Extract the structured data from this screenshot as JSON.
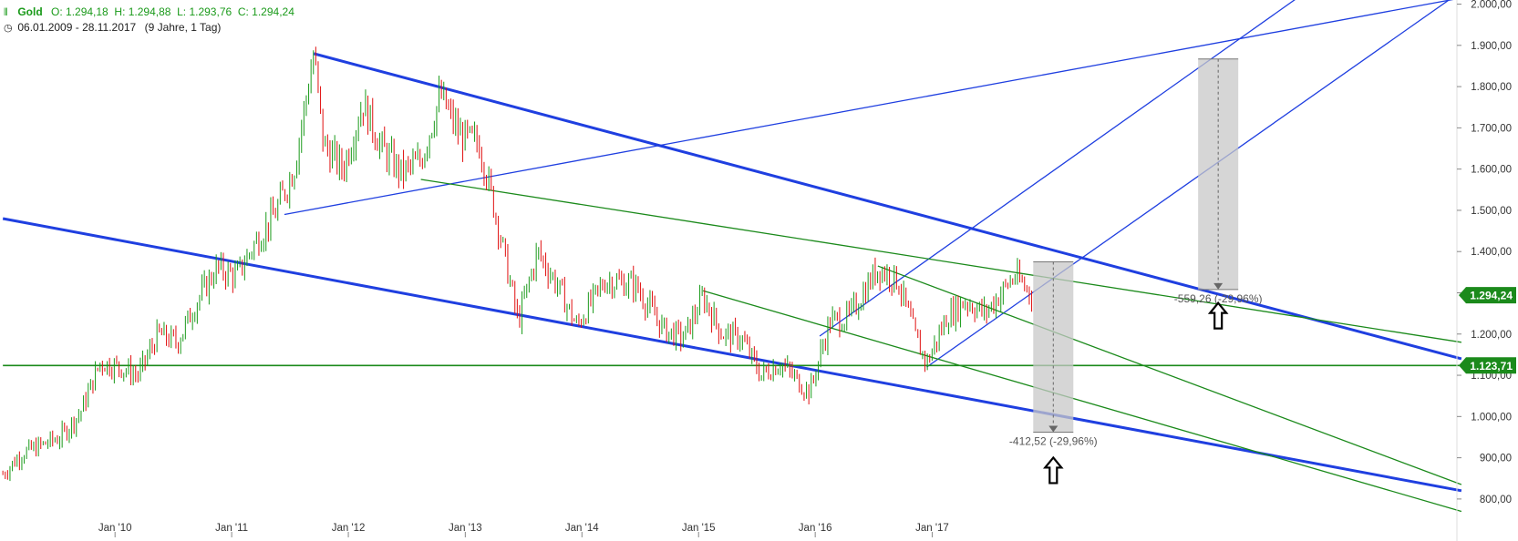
{
  "header": {
    "symbol": "Gold",
    "ohlc": "O: 1.294,18  H: 1.294,88  L: 1.293,76  C: 1.294,24",
    "range": "06.01.2009 - 28.11.2017",
    "period": "(9 Jahre, 1 Tag)",
    "icon_chart": "candlestick-icon",
    "icon_clock": "clock-icon"
  },
  "chart_data": {
    "type": "line",
    "style": "candlestick",
    "grid": false,
    "colors": {
      "up": "#1a9a1a",
      "down": "#e01010",
      "channel": "#1f3fe0",
      "green_lines": "#1b8a1b",
      "tag": "#1b8a1b"
    },
    "x_ticks": [
      "Jan '10",
      "Jan '11",
      "Jan '12",
      "Jan '13",
      "Jan '14",
      "Jan '15",
      "Jan '16",
      "Jan '17"
    ],
    "y_ticks": [
      "800,00",
      "900,00",
      "1.000,00",
      "1.100,00",
      "1.200,00",
      "1.300,00",
      "1.400,00",
      "1.500,00",
      "1.600,00",
      "1.700,00",
      "1.800,00",
      "1.900,00",
      "2.000,00"
    ],
    "ylim": [
      760,
      2010
    ],
    "xlim": [
      "2009-01-06",
      "2021-07-01"
    ],
    "price_series": {
      "name": "Gold",
      "x": [
        "2009-01",
        "2009-03",
        "2009-05",
        "2009-07",
        "2009-09",
        "2009-11",
        "2010-01",
        "2010-03",
        "2010-05",
        "2010-07",
        "2010-09",
        "2010-11",
        "2011-01",
        "2011-03",
        "2011-05",
        "2011-07",
        "2011-09",
        "2011-10",
        "2011-12",
        "2012-02",
        "2012-04",
        "2012-06",
        "2012-08",
        "2012-10",
        "2012-12",
        "2013-02",
        "2013-04",
        "2013-06",
        "2013-08",
        "2013-10",
        "2013-12",
        "2014-03",
        "2014-06",
        "2014-09",
        "2014-11",
        "2015-01",
        "2015-03",
        "2015-05",
        "2015-07",
        "2015-09",
        "2015-11",
        "2015-12",
        "2016-02",
        "2016-04",
        "2016-07",
        "2016-09",
        "2016-11",
        "2016-12",
        "2017-02",
        "2017-04",
        "2017-06",
        "2017-09",
        "2017-11"
      ],
      "y": [
        860,
        910,
        930,
        950,
        1010,
        1130,
        1120,
        1100,
        1200,
        1180,
        1280,
        1360,
        1340,
        1420,
        1490,
        1600,
        1880,
        1660,
        1600,
        1760,
        1650,
        1590,
        1620,
        1780,
        1680,
        1660,
        1460,
        1230,
        1400,
        1320,
        1220,
        1330,
        1320,
        1210,
        1190,
        1290,
        1200,
        1190,
        1100,
        1130,
        1080,
        1060,
        1230,
        1240,
        1360,
        1330,
        1180,
        1130,
        1240,
        1280,
        1250,
        1340,
        1294
      ]
    },
    "lines": [
      {
        "name": "blue-channel-upper",
        "color": "#1f3fe0",
        "points": [
          [
            "2011-09",
            1880
          ],
          [
            "2021-07",
            1140
          ]
        ]
      },
      {
        "name": "blue-channel-lower",
        "color": "#1f3fe0",
        "points": [
          [
            "2009-01",
            1480
          ],
          [
            "2021-07",
            820
          ]
        ]
      },
      {
        "name": "blue-fan-upper",
        "color": "#1f3fe0",
        "points": [
          [
            "2011-06",
            1490
          ],
          [
            "2021-07",
            2015
          ]
        ]
      },
      {
        "name": "blue-ray-1",
        "color": "#1f3fe0",
        "points": [
          [
            "2016-01",
            1195
          ],
          [
            "2020-06",
            2080
          ]
        ]
      },
      {
        "name": "blue-ray-2",
        "color": "#1f3fe0",
        "points": [
          [
            "2016-12",
            1120
          ],
          [
            "2021-06",
            2015
          ]
        ]
      },
      {
        "name": "green-trend-long",
        "color": "#1b8a1b",
        "points": [
          [
            "2012-08",
            1575
          ],
          [
            "2021-07",
            1180
          ]
        ]
      },
      {
        "name": "green-horizontal",
        "color": "#1b8a1b",
        "points": [
          [
            "2009-01",
            1123.71
          ],
          [
            "2021-07",
            1123.71
          ]
        ]
      },
      {
        "name": "green-down-1",
        "color": "#1b8a1b",
        "points": [
          [
            "2015-01",
            1305
          ],
          [
            "2021-07",
            770
          ]
        ]
      },
      {
        "name": "green-down-2",
        "color": "#1b8a1b",
        "points": [
          [
            "2016-07",
            1365
          ],
          [
            "2021-07",
            835
          ]
        ]
      }
    ],
    "measurements": [
      {
        "label": "-412,52 (-29,96%)",
        "from": [
          "2018-01",
          1375
        ],
        "to": [
          "2018-01",
          962
        ]
      },
      {
        "label": "-559,26 (-29,96%)",
        "from": [
          "2019-06",
          1867
        ],
        "to": [
          "2019-06",
          1308
        ]
      }
    ],
    "price_tags": [
      {
        "label": "1.294,24",
        "value": 1294.24
      },
      {
        "label": "1.123,71",
        "value": 1123.71
      }
    ],
    "arrows": [
      {
        "name": "up-arrow-1",
        "x": "2018-01",
        "y": 865
      },
      {
        "name": "up-arrow-2",
        "x": "2019-06",
        "y": 1240
      }
    ]
  }
}
